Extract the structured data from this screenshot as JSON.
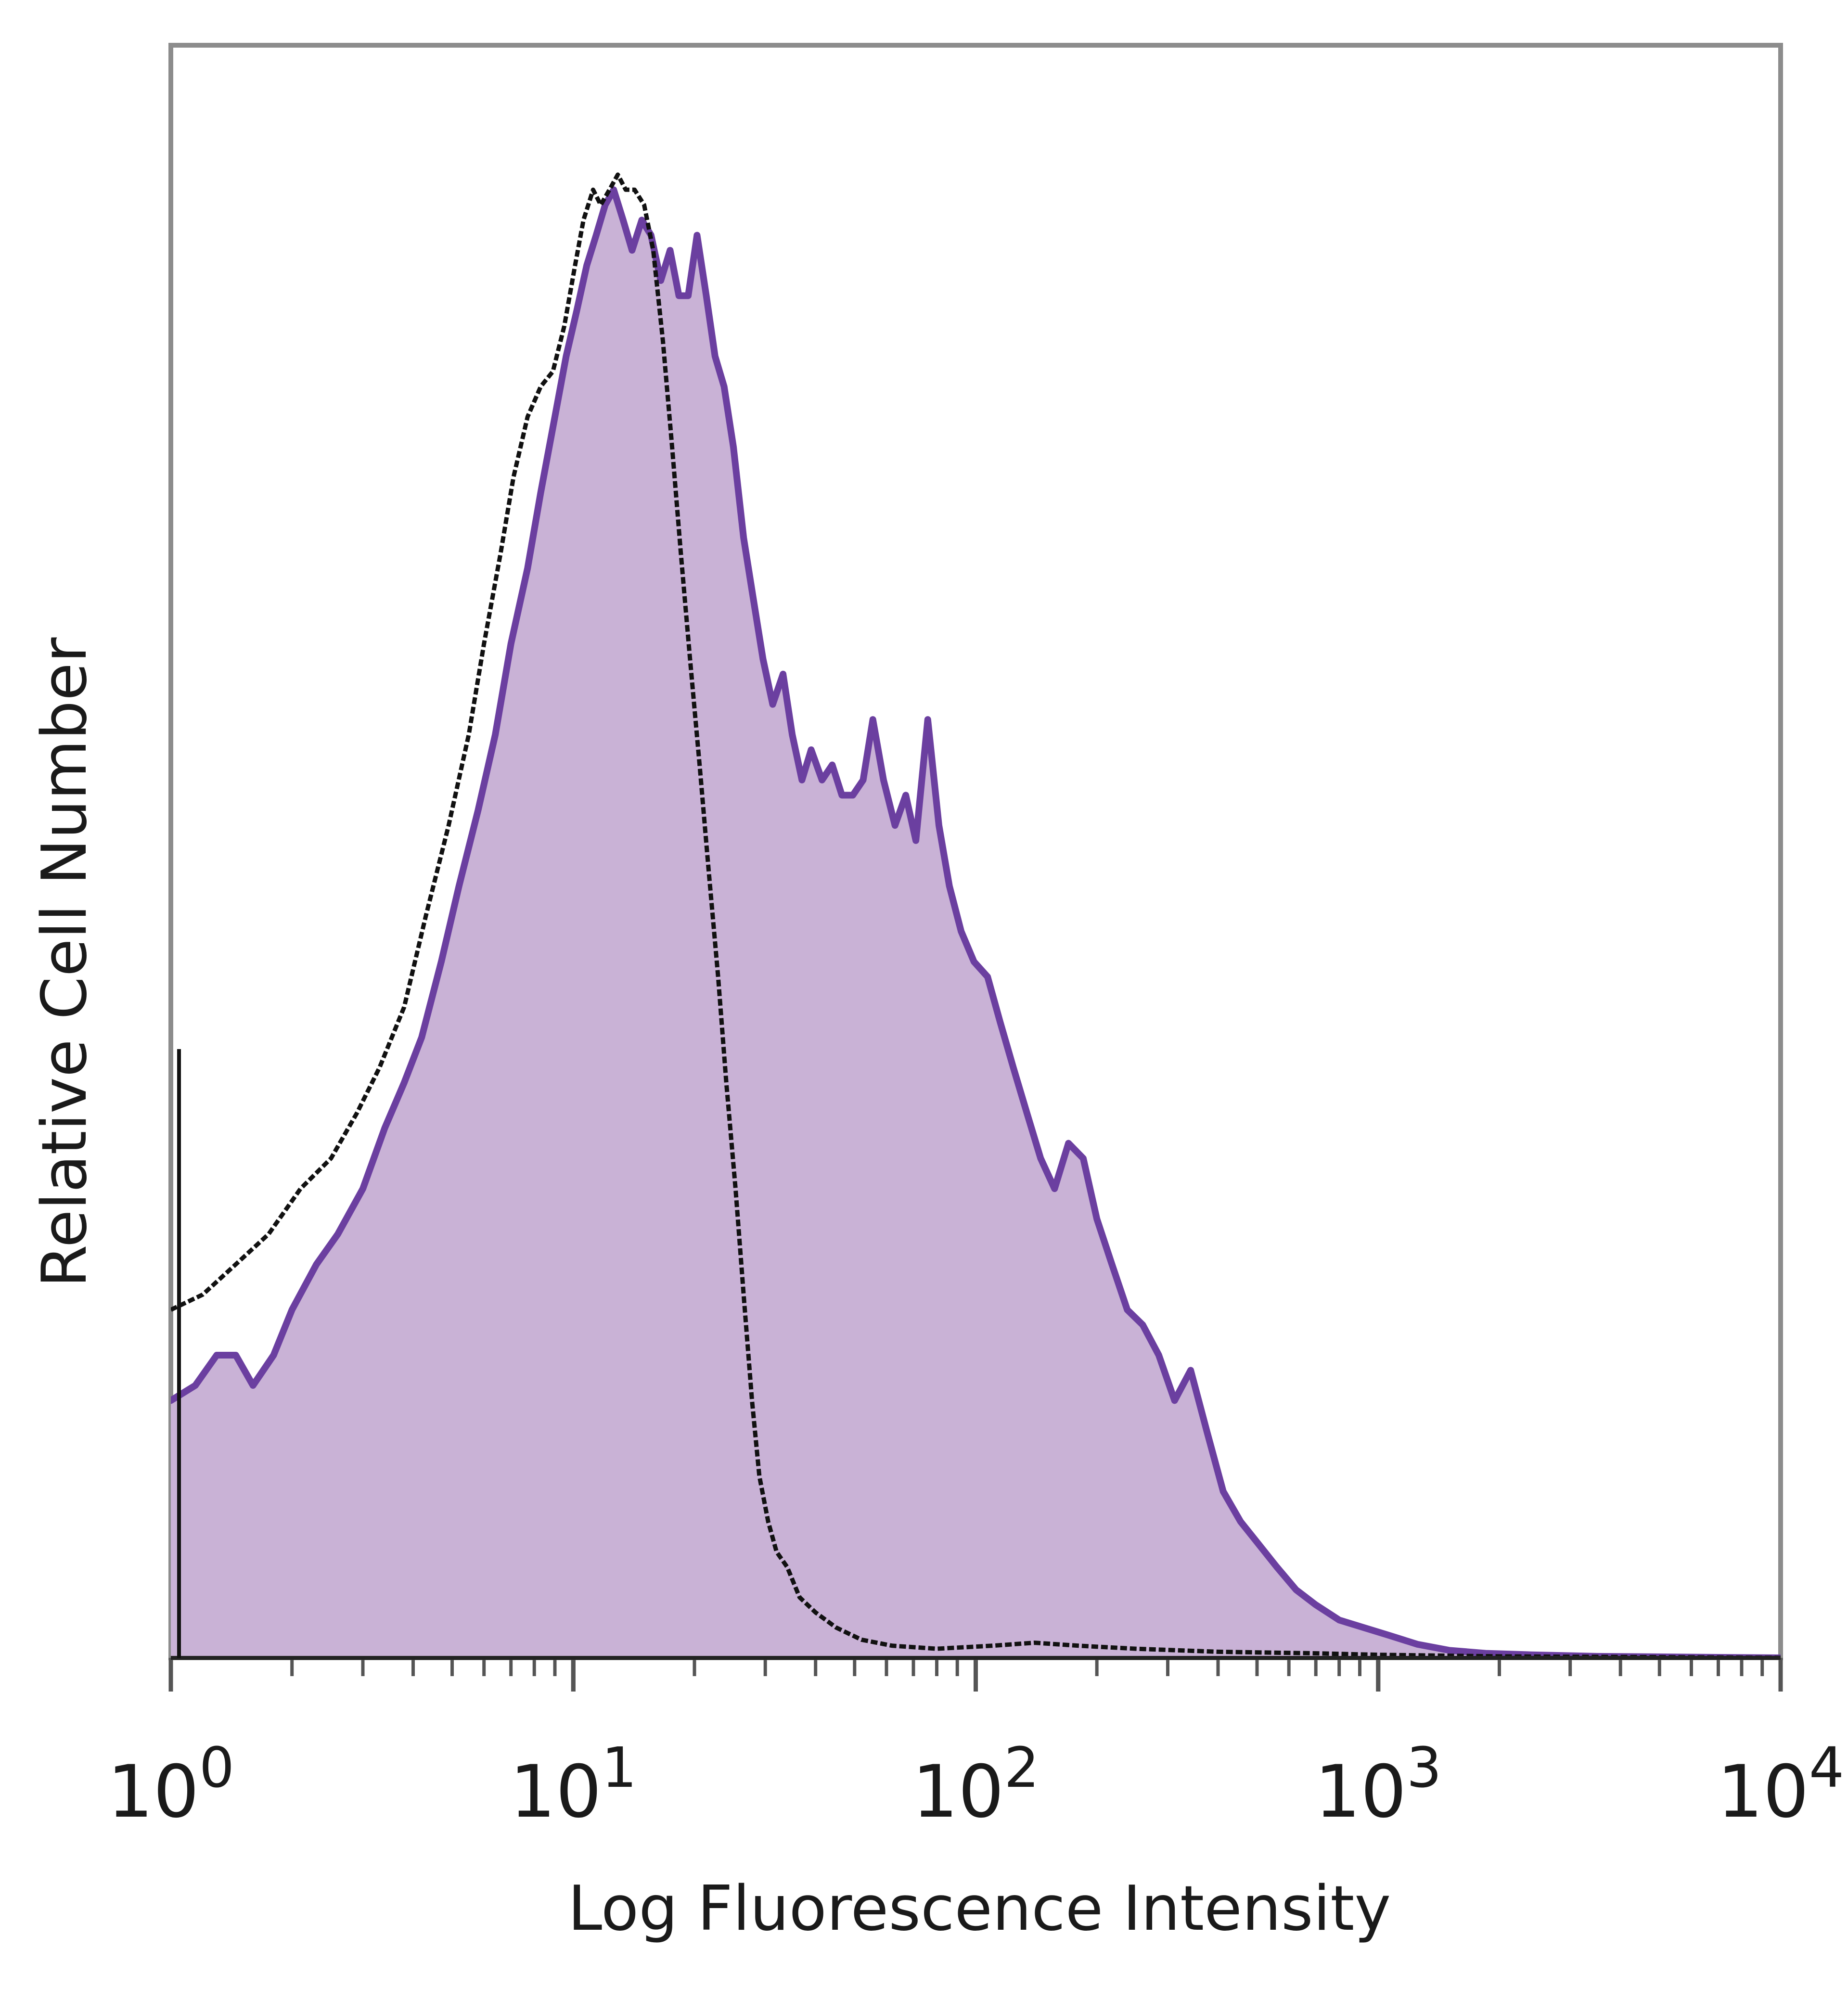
{
  "chart_data": {
    "type": "area",
    "xlabel": "Log Fluorescence Intensity",
    "ylabel": "Relative Cell Number",
    "x_scale": "log",
    "xlim": [
      1,
      10000
    ],
    "ylim": [
      0,
      1.0
    ],
    "grid": false,
    "x_ticks": [
      {
        "value": 1,
        "base": "10",
        "exp": "0"
      },
      {
        "value": 10,
        "base": "10",
        "exp": "1"
      },
      {
        "value": 100,
        "base": "10",
        "exp": "2"
      },
      {
        "value": 1000,
        "base": "10",
        "exp": "3"
      },
      {
        "value": 10000,
        "base": "10",
        "exp": "4"
      }
    ],
    "series": [
      {
        "style": "filled",
        "color": "#6b3fa0",
        "fill": "#c9b2d6",
        "points": [
          [
            1.0,
            0.17
          ],
          [
            1.15,
            0.18
          ],
          [
            1.3,
            0.2
          ],
          [
            1.45,
            0.2
          ],
          [
            1.6,
            0.18
          ],
          [
            1.8,
            0.2
          ],
          [
            2.0,
            0.23
          ],
          [
            2.3,
            0.26
          ],
          [
            2.6,
            0.28
          ],
          [
            3.0,
            0.31
          ],
          [
            3.4,
            0.35
          ],
          [
            3.8,
            0.38
          ],
          [
            4.2,
            0.41
          ],
          [
            4.7,
            0.46
          ],
          [
            5.2,
            0.51
          ],
          [
            5.8,
            0.56
          ],
          [
            6.4,
            0.61
          ],
          [
            7.0,
            0.67
          ],
          [
            7.7,
            0.72
          ],
          [
            8.3,
            0.77
          ],
          [
            9.0,
            0.82
          ],
          [
            9.6,
            0.86
          ],
          [
            10.2,
            0.89
          ],
          [
            10.8,
            0.92
          ],
          [
            11.4,
            0.94
          ],
          [
            12.0,
            0.96
          ],
          [
            12.6,
            0.97
          ],
          [
            13.3,
            0.95
          ],
          [
            14.0,
            0.93
          ],
          [
            14.8,
            0.95
          ],
          [
            15.6,
            0.94
          ],
          [
            16.5,
            0.91
          ],
          [
            17.4,
            0.93
          ],
          [
            18.3,
            0.9
          ],
          [
            19.3,
            0.9
          ],
          [
            20.3,
            0.94
          ],
          [
            21.4,
            0.9
          ],
          [
            22.5,
            0.86
          ],
          [
            23.7,
            0.84
          ],
          [
            25.0,
            0.8
          ],
          [
            26.5,
            0.74
          ],
          [
            28.0,
            0.7
          ],
          [
            29.6,
            0.66
          ],
          [
            31.3,
            0.63
          ],
          [
            33.2,
            0.65
          ],
          [
            35.0,
            0.61
          ],
          [
            37.0,
            0.58
          ],
          [
            39.0,
            0.6
          ],
          [
            41.5,
            0.58
          ],
          [
            44.0,
            0.59
          ],
          [
            46.5,
            0.57
          ],
          [
            49.5,
            0.57
          ],
          [
            52.5,
            0.58
          ],
          [
            55.5,
            0.62
          ],
          [
            59.0,
            0.58
          ],
          [
            63.0,
            0.55
          ],
          [
            67.0,
            0.57
          ],
          [
            71.0,
            0.54
          ],
          [
            76.0,
            0.62
          ],
          [
            81.0,
            0.55
          ],
          [
            86.0,
            0.51
          ],
          [
            92.0,
            0.48
          ],
          [
            99.0,
            0.46
          ],
          [
            107.0,
            0.45
          ],
          [
            115.0,
            0.42
          ],
          [
            124.0,
            0.39
          ],
          [
            134.0,
            0.36
          ],
          [
            145.0,
            0.33
          ],
          [
            157.0,
            0.31
          ],
          [
            170.0,
            0.34
          ],
          [
            185.0,
            0.33
          ],
          [
            200.0,
            0.29
          ],
          [
            218.0,
            0.26
          ],
          [
            238.0,
            0.23
          ],
          [
            260.0,
            0.22
          ],
          [
            285.0,
            0.2
          ],
          [
            312.0,
            0.17
          ],
          [
            342.0,
            0.19
          ],
          [
            375.0,
            0.15
          ],
          [
            412.0,
            0.11
          ],
          [
            455.0,
            0.09
          ],
          [
            505.0,
            0.075
          ],
          [
            560.0,
            0.06
          ],
          [
            625.0,
            0.045
          ],
          [
            700.0,
            0.035
          ],
          [
            800.0,
            0.025
          ],
          [
            920.0,
            0.02
          ],
          [
            1060.0,
            0.015
          ],
          [
            1250.0,
            0.009
          ],
          [
            1500.0,
            0.005
          ],
          [
            1850.0,
            0.003
          ],
          [
            2400.0,
            0.002
          ],
          [
            3500.0,
            0.001
          ],
          [
            10000.0,
            0.0
          ]
        ]
      },
      {
        "style": "dashed",
        "color": "#111111",
        "points": [
          [
            1.0,
            0.23
          ],
          [
            1.2,
            0.24
          ],
          [
            1.45,
            0.26
          ],
          [
            1.75,
            0.28
          ],
          [
            2.1,
            0.31
          ],
          [
            2.5,
            0.33
          ],
          [
            2.9,
            0.36
          ],
          [
            3.3,
            0.39
          ],
          [
            3.8,
            0.43
          ],
          [
            4.3,
            0.49
          ],
          [
            4.9,
            0.55
          ],
          [
            5.5,
            0.61
          ],
          [
            6.0,
            0.67
          ],
          [
            6.6,
            0.73
          ],
          [
            7.1,
            0.78
          ],
          [
            7.7,
            0.82
          ],
          [
            8.3,
            0.84
          ],
          [
            8.9,
            0.85
          ],
          [
            9.5,
            0.88
          ],
          [
            10.1,
            0.92
          ],
          [
            10.6,
            0.95
          ],
          [
            11.2,
            0.97
          ],
          [
            11.7,
            0.96
          ],
          [
            12.3,
            0.97
          ],
          [
            12.9,
            0.98
          ],
          [
            13.5,
            0.97
          ],
          [
            14.2,
            0.97
          ],
          [
            15.0,
            0.96
          ],
          [
            15.8,
            0.93
          ],
          [
            16.7,
            0.87
          ],
          [
            17.6,
            0.8
          ],
          [
            18.5,
            0.73
          ],
          [
            19.5,
            0.66
          ],
          [
            20.6,
            0.59
          ],
          [
            21.7,
            0.52
          ],
          [
            22.9,
            0.45
          ],
          [
            24.0,
            0.38
          ],
          [
            25.3,
            0.31
          ],
          [
            26.5,
            0.24
          ],
          [
            27.8,
            0.17
          ],
          [
            29.0,
            0.12
          ],
          [
            30.5,
            0.09
          ],
          [
            32.0,
            0.07
          ],
          [
            34.0,
            0.06
          ],
          [
            36.5,
            0.04
          ],
          [
            40.0,
            0.03
          ],
          [
            45.0,
            0.02
          ],
          [
            52.0,
            0.012
          ],
          [
            62.0,
            0.008
          ],
          [
            80.0,
            0.006
          ],
          [
            110.0,
            0.008
          ],
          [
            140.0,
            0.01
          ],
          [
            180.0,
            0.008
          ],
          [
            250.0,
            0.006
          ],
          [
            400.0,
            0.004
          ],
          [
            700.0,
            0.003
          ],
          [
            1000.0,
            0.002
          ],
          [
            2000.0,
            0.001
          ],
          [
            10000.0,
            0.0
          ]
        ]
      }
    ]
  }
}
